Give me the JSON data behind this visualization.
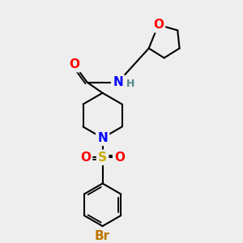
{
  "bg_color": "#eeeeee",
  "bond_color": "#000000",
  "bond_width": 1.5,
  "atom_colors": {
    "O": "#ff0000",
    "N": "#0000ff",
    "S": "#ccaa00",
    "Br": "#bb7700",
    "H": "#558888",
    "C": "#000000"
  },
  "font_size_atom": 11,
  "font_size_small": 9,
  "xlim": [
    0,
    10
  ],
  "ylim": [
    0,
    10
  ]
}
